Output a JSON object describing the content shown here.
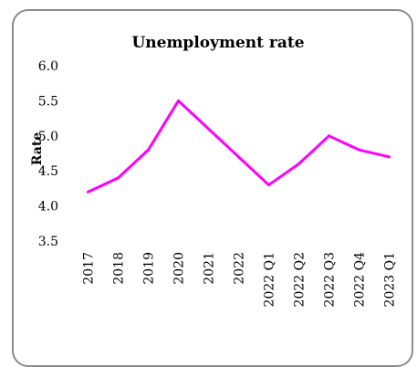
{
  "chart_data": {
    "type": "line",
    "title": "Unemployment rate",
    "xlabel": "",
    "ylabel": "Rate",
    "categories": [
      "2017",
      "2018",
      "2019",
      "2020",
      "2021",
      "2022",
      "2022 Q1",
      "2022 Q2",
      "2022 Q3",
      "2022 Q4",
      "2023 Q1"
    ],
    "series": [
      {
        "values": [
          4.2,
          4.4,
          4.8,
          5.5,
          5.1,
          4.7,
          4.3,
          4.6,
          5.0,
          4.8,
          4.7
        ],
        "color": "#ff00ff"
      }
    ],
    "ylim": [
      3.5,
      6.0
    ],
    "yticks": [
      "6.0",
      "5.5",
      "5.0",
      "4.5",
      "4.0",
      "3.5"
    ],
    "grid": false,
    "legend": "none"
  }
}
